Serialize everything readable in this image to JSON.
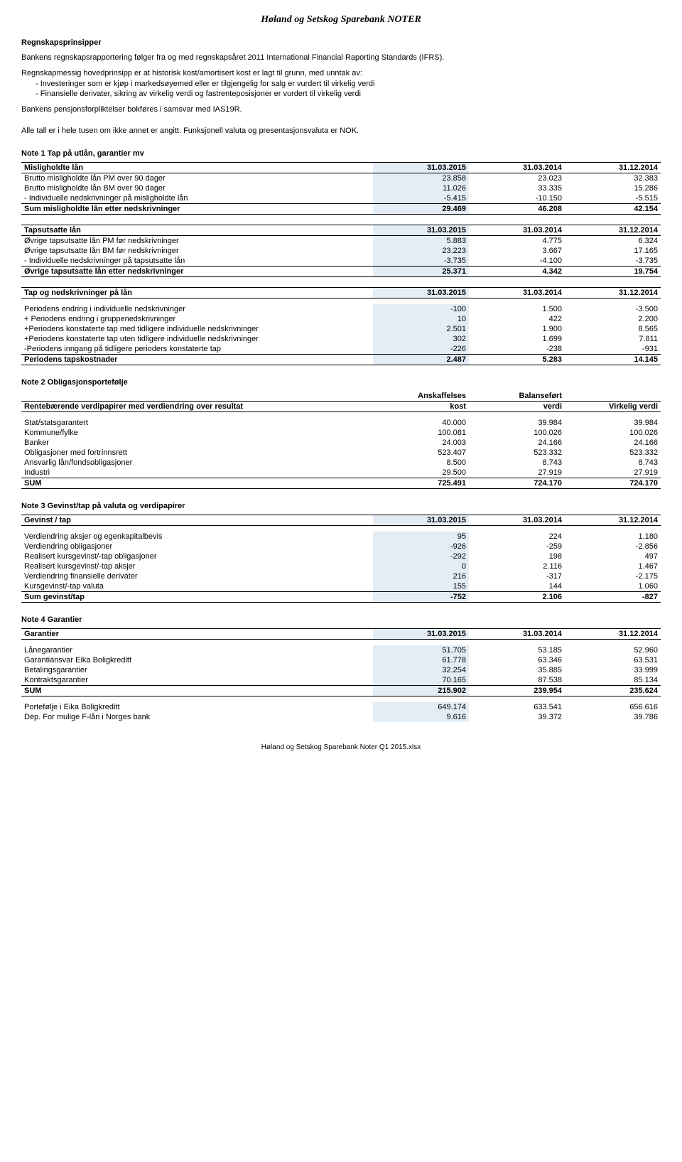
{
  "title": "Høland og Setskog Sparebank NOTER",
  "footer": "Høland og Setskog Sparebank Noter Q1 2015.xlsx",
  "principles_head": "Regnskapsprinsipper",
  "principles": {
    "p1": "Bankens regnskapsrapportering følger fra og med regnskapsåret 2011 International Financial Raporting Standards (IFRS).",
    "p2a": "Regnskapmessig hovedprinsipp er at historisk kost/amortisert kost er lagt til grunn, med unntak av:",
    "p2b": "- Investeringer som er kjøp i markedsøyemed eller er tilgjengelig for salg er vurdert til virkelig verdi",
    "p2c": "- Finansielle derivater, sikring av virkelig verdi og fastrenteposisjoner er vurdert til virkelig verdi",
    "p3": "Bankens pensjonsforpliktelser bokføres i samsvar med IAS19R.",
    "p4": "Alle tall er i hele tusen om ikke annet er angitt. Funksjonell valuta og presentasjonsvaluta er NOK."
  },
  "dates": {
    "d1": "31.03.2015",
    "d2": "31.03.2014",
    "d3": "31.12.2014"
  },
  "note1": {
    "head": "Note 1 Tap på utlån, garantier mv",
    "t1": {
      "hdr": "Misligholdte lån",
      "rows": [
        {
          "label": "Brutto misligholdte lån PM over 90 dager",
          "v1": "23.858",
          "v2": "23.023",
          "v3": "32.383"
        },
        {
          "label": "Brutto misligholdte lån BM over 90 dager",
          "v1": "11.026",
          "v2": "33.335",
          "v3": "15.286"
        },
        {
          "label": "- Individuelle nedskrivninger på misligholdte lån",
          "v1": "-5.415",
          "v2": "-10.150",
          "v3": "-5.515"
        }
      ],
      "sum": {
        "label": "Sum misligholdte lån etter nedskrivninger",
        "v1": "29.469",
        "v2": "46.208",
        "v3": "42.154"
      }
    },
    "t2": {
      "hdr": "Tapsutsatte lån",
      "rows": [
        {
          "label": "Øvrige tapsutsatte lån PM før nedskrivninger",
          "v1": "5.883",
          "v2": "4.775",
          "v3": "6.324"
        },
        {
          "label": "Øvrige tapsutsatte lån BM før nedskrivninger",
          "v1": "23.223",
          "v2": "3.667",
          "v3": "17.165"
        },
        {
          "label": "- Individuelle nedskrivninger på tapsutsatte lån",
          "v1": "-3.735",
          "v2": "-4.100",
          "v3": "-3.735"
        }
      ],
      "sum": {
        "label": "Øvrige tapsutsatte lån etter nedskrivninger",
        "v1": "25.371",
        "v2": "4.342",
        "v3": "19.754"
      }
    },
    "t3": {
      "hdr": "Tap og nedskrivninger på lån",
      "rows": [
        {
          "label": "Periodens endring i individuelle nedskrivninger",
          "v1": "-100",
          "v2": "1.500",
          "v3": "-3.500"
        },
        {
          "label": " + Periodens endring i gruppenedskrivninger",
          "v1": "10",
          "v2": "422",
          "v3": "2.200"
        },
        {
          "label": "+Periodens konstaterte tap med tidligere individuelle nedskrivninger",
          "v1": "2.501",
          "v2": "1.900",
          "v3": "8.565"
        },
        {
          "label": "+Periodens konstaterte tap uten tidligere individuelle nedskrivninger",
          "v1": "302",
          "v2": "1.699",
          "v3": "7.811"
        },
        {
          "label": "-Periodens inngang på tidligere perioders konstaterte tap",
          "v1": "-226",
          "v2": "-238",
          "v3": "-931"
        }
      ],
      "sum": {
        "label": "Periodens tapskostnader",
        "v1": "2.487",
        "v2": "5.283",
        "v3": "14.145"
      }
    }
  },
  "note2": {
    "head": "Note 2 Obligasjonsportefølje",
    "hdr_label": "Rentebærende verdipapirer med verdiendring over resultat",
    "col1a": "Anskaffelses",
    "col1b": "kost",
    "col2a": "Balanseført",
    "col2b": "verdi",
    "col3": "Virkelig verdi",
    "rows": [
      {
        "label": "Stat/statsgarantert",
        "v1": "40.000",
        "v2": "39.984",
        "v3": "39.984"
      },
      {
        "label": "Kommune/fylke",
        "v1": "100.081",
        "v2": "100.026",
        "v3": "100.026"
      },
      {
        "label": "Banker",
        "v1": "24.003",
        "v2": "24.166",
        "v3": "24.166"
      },
      {
        "label": "Obligasjoner med fortrinnsrett",
        "v1": "523.407",
        "v2": "523.332",
        "v3": "523.332"
      },
      {
        "label": "Ansvarlig lån/fondsobligasjoner",
        "v1": "8.500",
        "v2": "8.743",
        "v3": "8.743"
      },
      {
        "label": "Industri",
        "v1": "29.500",
        "v2": "27.919",
        "v3": "27.919"
      }
    ],
    "sum": {
      "label": "SUM",
      "v1": "725.491",
      "v2": "724.170",
      "v3": "724.170"
    }
  },
  "note3": {
    "head": "Note 3 Gevinst/tap på valuta og verdipapirer",
    "hdr": "Gevinst / tap",
    "rows": [
      {
        "label": "Verdiendring aksjer og egenkapitalbevis",
        "v1": "95",
        "v2": "224",
        "v3": "1.180"
      },
      {
        "label": "Verdiendring obligasjoner",
        "v1": "-926",
        "v2": "-259",
        "v3": "-2.856"
      },
      {
        "label": "Realisert kursgevinst/-tap obligasjoner",
        "v1": "-292",
        "v2": "198",
        "v3": "497"
      },
      {
        "label": "Realisert kursgevinst/-tap aksjer",
        "v1": "0",
        "v2": "2.116",
        "v3": "1.467"
      },
      {
        "label": "Verdiendring finansielle derivater",
        "v1": "216",
        "v2": "-317",
        "v3": "-2.175"
      },
      {
        "label": "Kursgevinst/-tap valuta",
        "v1": "155",
        "v2": "144",
        "v3": "1.060"
      }
    ],
    "sum": {
      "label": "Sum gevinst/tap",
      "v1": "-752",
      "v2": "2.106",
      "v3": "-827"
    }
  },
  "note4": {
    "head": "Note 4 Garantier",
    "hdr": "Garantier",
    "rows": [
      {
        "label": "Lånegarantier",
        "v1": "51.705",
        "v2": "53.185",
        "v3": "52.960"
      },
      {
        "label": "Garantiansvar Eika Boligkreditt",
        "v1": "61.778",
        "v2": "63.346",
        "v3": "63.531"
      },
      {
        "label": "Betalingsgarantier",
        "v1": "32.254",
        "v2": "35.885",
        "v3": "33.999"
      },
      {
        "label": "Kontraktsgarantier",
        "v1": "70.165",
        "v2": "87.538",
        "v3": "85.134"
      }
    ],
    "sum": {
      "label": "SUM",
      "v1": "215.902",
      "v2": "239.954",
      "v3": "235.624"
    },
    "extra": [
      {
        "label": "Portefølje i Eika Boligkreditt",
        "v1": "649.174",
        "v2": "633.541",
        "v3": "656.616"
      },
      {
        "label": "Dep. For mulige F-lån i Norges bank",
        "v1": "9.616",
        "v2": "39.372",
        "v3": "39.786"
      }
    ]
  }
}
